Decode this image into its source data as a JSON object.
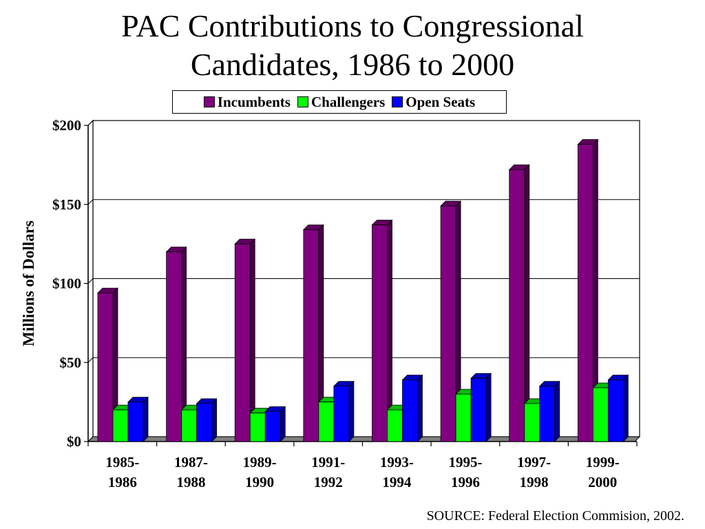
{
  "chart_data": {
    "type": "bar",
    "title_lines": [
      "PAC Contributions to Congressional",
      "Candidates, 1986 to 2000"
    ],
    "ylabel": "Millions of Dollars",
    "xlabel": "",
    "categories": [
      [
        "1985-",
        "1986"
      ],
      [
        "1987-",
        "1988"
      ],
      [
        "1989-",
        "1990"
      ],
      [
        "1991-",
        "1992"
      ],
      [
        "1993-",
        "1994"
      ],
      [
        "1995-",
        "1996"
      ],
      [
        "1997-",
        "1998"
      ],
      [
        "1999-",
        "2000"
      ]
    ],
    "series": [
      {
        "name": "Incumbents",
        "color": "#800080",
        "values": [
          94,
          120,
          125,
          134,
          137,
          149,
          172,
          188
        ]
      },
      {
        "name": "Challengers",
        "color": "#00ff00",
        "values": [
          20,
          20,
          18,
          25,
          20,
          30,
          24,
          34
        ]
      },
      {
        "name": "Open Seats",
        "color": "#0000ff",
        "values": [
          25,
          24,
          19,
          35,
          39,
          40,
          35,
          39
        ]
      }
    ],
    "ylim": [
      0,
      200
    ],
    "yticks": [
      0,
      50,
      100,
      150,
      200
    ],
    "ytick_labels": [
      "$0",
      "$50",
      "$100",
      "$150",
      "$200"
    ],
    "grid": true,
    "legend_position": "top-center",
    "source": "SOURCE: Federal Election Commision, 2002."
  }
}
